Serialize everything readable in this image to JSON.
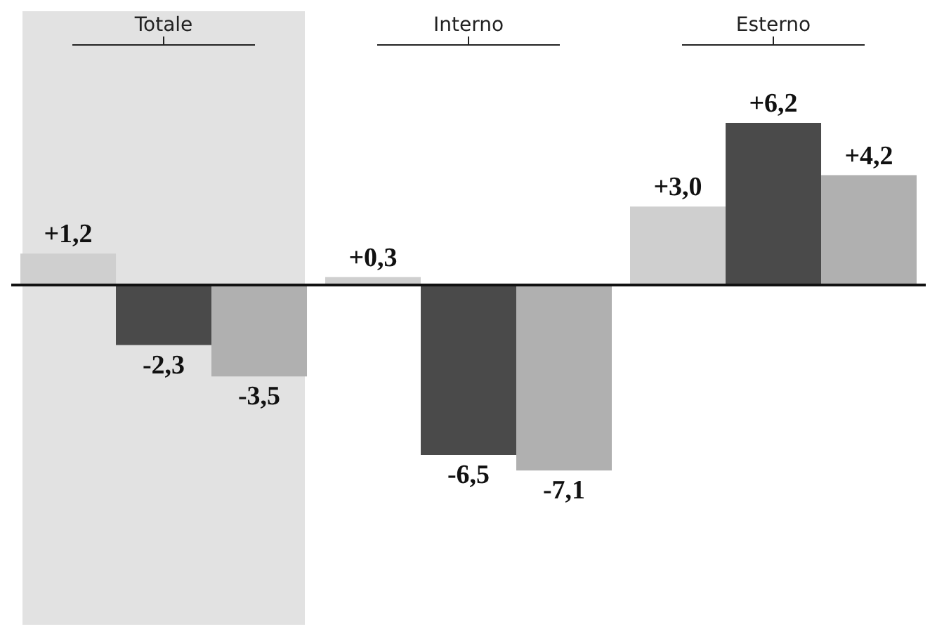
{
  "chart_data": {
    "type": "bar",
    "categories": [
      "Totale",
      "Interno",
      "Esterno"
    ],
    "series": [
      {
        "color": "#cfcfcf",
        "values": [
          1.2,
          0.3,
          3.0
        ],
        "value_labels": [
          "+1,2",
          "+0,3",
          "+3,0"
        ]
      },
      {
        "color": "#4a4a4a",
        "values": [
          -2.3,
          -6.5,
          6.2
        ],
        "value_labels": [
          "-2,3",
          "-6,5",
          "+6,2"
        ]
      },
      {
        "color": "#b0b0b0",
        "values": [
          -3.5,
          -7.1,
          4.2
        ],
        "value_labels": [
          "-3,5",
          "-7,1",
          "+4,2"
        ]
      }
    ],
    "bands": [
      {
        "axis": "x",
        "from": "Totale",
        "to": "Totale",
        "color": "#e2e2e2"
      }
    ],
    "grid": false,
    "legend": false
  }
}
